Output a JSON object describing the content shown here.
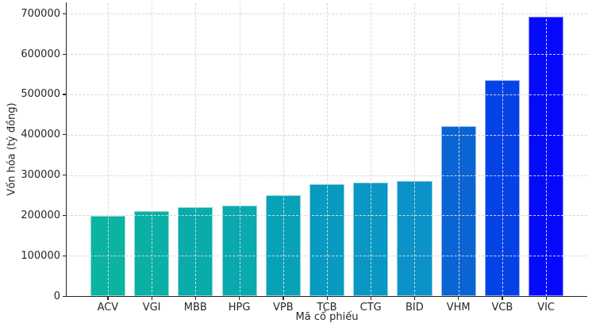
{
  "chart_data": {
    "type": "bar",
    "title": "",
    "xlabel": "Mã cổ phiếu",
    "ylabel": "Vốn hóa (tỷ đồng)",
    "categories": [
      "ACV",
      "VGI",
      "MBB",
      "HPG",
      "VPB",
      "TCB",
      "CTG",
      "BID",
      "VHM",
      "VCB",
      "VIC"
    ],
    "values": [
      199000,
      210000,
      221000,
      225000,
      250000,
      278000,
      281000,
      286000,
      422000,
      536000,
      692000
    ],
    "bar_colors": [
      "#0ab4a1",
      "#0ab0a6",
      "#09abab",
      "#09a9ae",
      "#08a2b8",
      "#089ac1",
      "#0997c4",
      "#0a92c9",
      "#0a64d3",
      "#0542e6",
      "#050afb"
    ],
    "ylim": [
      0,
      726000
    ],
    "yticks": [
      0,
      100000,
      200000,
      300000,
      400000,
      500000,
      600000,
      700000
    ],
    "ytick_labels": [
      "0",
      "100000",
      "200000",
      "300000",
      "400000",
      "500000",
      "600000",
      "700000"
    ],
    "grid": true,
    "grid_style": "dashed",
    "legend": null
  },
  "styles": {
    "background": "#ffffff",
    "text_color": "#262626",
    "spine_color": "#262626",
    "grid_color": "#d8d8d8",
    "bar_edge_color": "rgba(255,255,255,0.55)"
  }
}
